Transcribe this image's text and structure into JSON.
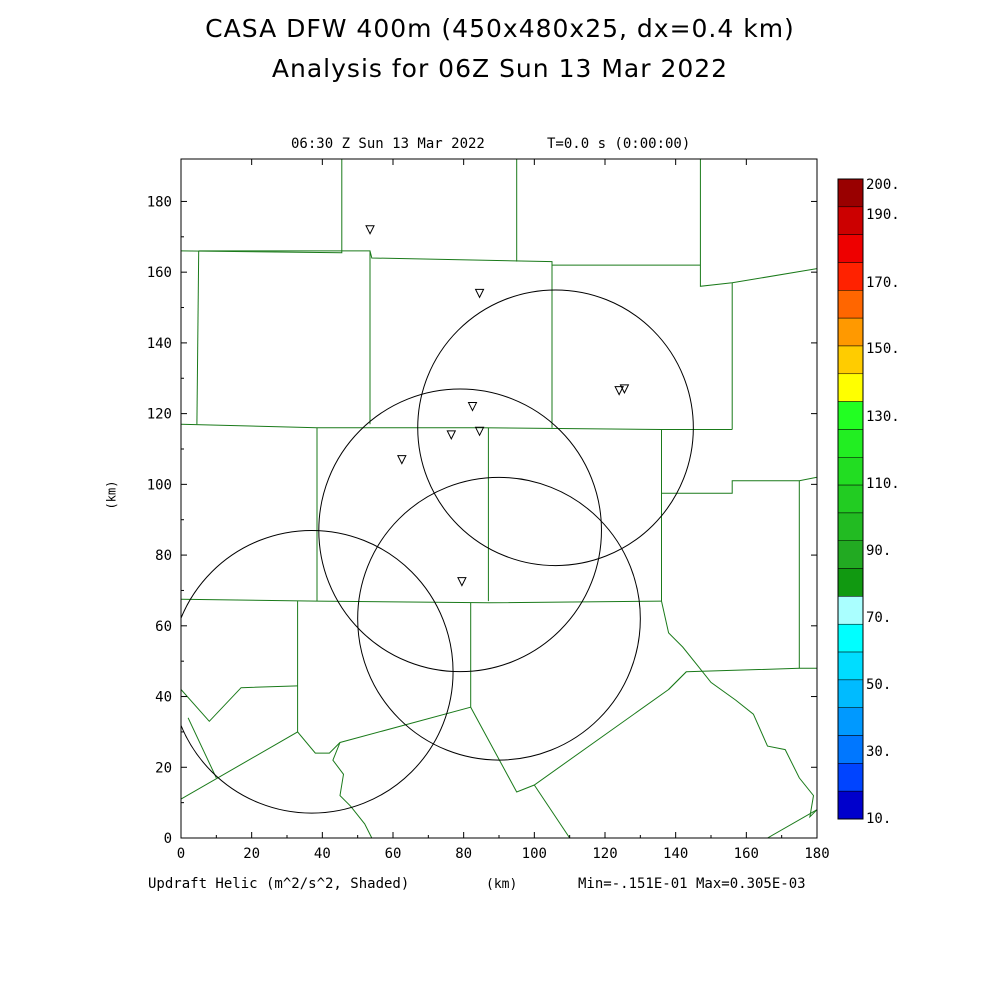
{
  "header": {
    "title_line1": "CASA DFW 400m (450x480x25, dx=0.4 km)",
    "title_line2": "Analysis for 06Z Sun 13 Mar 2022"
  },
  "plot": {
    "time_label": "06:30 Z Sun 13 Mar 2022",
    "t_label": "T=0.0 s (0:00:00)",
    "ylabel": "(km)",
    "xlabel": "(km)",
    "field_label": "Updraft Helic (m^2/s^2, Shaded)",
    "minmax_label": "Min=-.151E-01 Max=0.305E-03"
  },
  "chart_data": {
    "type": "contour-map",
    "xlim": [
      0,
      180
    ],
    "ylim": [
      0,
      192
    ],
    "x_ticks": [
      0,
      20,
      40,
      60,
      80,
      100,
      120,
      140,
      160,
      180
    ],
    "y_ticks": [
      0,
      20,
      40,
      60,
      80,
      100,
      120,
      140,
      160,
      180
    ],
    "x_tick_labels": [
      "0",
      "20",
      "40",
      "60",
      "80",
      "100",
      "120",
      "140",
      "160",
      "180"
    ],
    "y_tick_labels": [
      "0",
      "20",
      "40",
      "60",
      "80",
      "100",
      "120",
      "140",
      "160",
      "180"
    ],
    "radar_range_circles_km": [
      {
        "cx": 37,
        "cy": 47,
        "r": 40
      },
      {
        "cx": 79,
        "cy": 87,
        "r": 40
      },
      {
        "cx": 90,
        "cy": 62,
        "r": 40
      },
      {
        "cx": 106,
        "cy": 116,
        "r": 39
      }
    ],
    "station_markers_km": [
      {
        "x": 53.5,
        "y": 172
      },
      {
        "x": 84.5,
        "y": 154
      },
      {
        "x": 82.5,
        "y": 122
      },
      {
        "x": 76.5,
        "y": 114
      },
      {
        "x": 84.5,
        "y": 115
      },
      {
        "x": 62.5,
        "y": 107
      },
      {
        "x": 124,
        "y": 126.5
      },
      {
        "x": 125.5,
        "y": 127
      },
      {
        "x": 79.5,
        "y": 72.5
      }
    ],
    "county_boundaries_km": [
      [
        [
          0,
          166
        ],
        [
          45.5,
          165.5
        ],
        [
          45.5,
          192
        ]
      ],
      [
        [
          0,
          117
        ],
        [
          38.5,
          116
        ],
        [
          85,
          116
        ],
        [
          136,
          115.5
        ],
        [
          156,
          115.5
        ]
      ],
      [
        [
          5,
          166
        ],
        [
          4.5,
          117
        ]
      ],
      [
        [
          5,
          166
        ],
        [
          53.5,
          166
        ],
        [
          54,
          164
        ],
        [
          105,
          163
        ],
        [
          105,
          162
        ],
        [
          147,
          162
        ]
      ],
      [
        [
          53.5,
          166
        ],
        [
          53.5,
          117
        ]
      ],
      [
        [
          95,
          192
        ],
        [
          95,
          163
        ]
      ],
      [
        [
          105,
          162
        ],
        [
          105,
          116
        ]
      ],
      [
        [
          147,
          192
        ],
        [
          147,
          156
        ],
        [
          156,
          157
        ],
        [
          180,
          161
        ]
      ],
      [
        [
          156,
          157
        ],
        [
          156,
          115.5
        ]
      ],
      [
        [
          38.5,
          116
        ],
        [
          38.5,
          67
        ]
      ],
      [
        [
          87,
          116
        ],
        [
          87,
          67
        ]
      ],
      [
        [
          136,
          115.5
        ],
        [
          136,
          67
        ]
      ],
      [
        [
          136,
          97.5
        ],
        [
          156,
          97.5
        ],
        [
          156,
          101
        ],
        [
          175,
          101
        ],
        [
          180,
          102
        ]
      ],
      [
        [
          175,
          101
        ],
        [
          175,
          48
        ],
        [
          180,
          48
        ]
      ],
      [
        [
          0,
          67.5
        ],
        [
          38.5,
          67
        ],
        [
          87,
          66.5
        ],
        [
          136,
          67
        ]
      ],
      [
        [
          33,
          67
        ],
        [
          33,
          30
        ]
      ],
      [
        [
          82,
          66.5
        ],
        [
          82,
          37
        ]
      ],
      [
        [
          0,
          42
        ],
        [
          8,
          33
        ],
        [
          17,
          42.5
        ],
        [
          33,
          43
        ]
      ],
      [
        [
          2,
          34
        ],
        [
          10,
          17
        ]
      ],
      [
        [
          0,
          11
        ],
        [
          33,
          30
        ],
        [
          38,
          24
        ],
        [
          42,
          24
        ],
        [
          45,
          27
        ],
        [
          82,
          37
        ],
        [
          95,
          13
        ],
        [
          100,
          15
        ],
        [
          138,
          42
        ],
        [
          143,
          47
        ],
        [
          175,
          48
        ]
      ],
      [
        [
          138,
          42
        ],
        [
          143,
          47
        ]
      ],
      [
        [
          45,
          27
        ],
        [
          43,
          22
        ],
        [
          46,
          18
        ],
        [
          45,
          12
        ],
        [
          48,
          9
        ],
        [
          52,
          4
        ],
        [
          54,
          0
        ]
      ],
      [
        [
          100,
          15
        ],
        [
          110,
          0
        ]
      ],
      [
        [
          136,
          67
        ],
        [
          138,
          58
        ],
        [
          142,
          54
        ],
        [
          146,
          49
        ],
        [
          150,
          44
        ],
        [
          157,
          39
        ],
        [
          162,
          35
        ],
        [
          166,
          26
        ],
        [
          171,
          25
        ],
        [
          175,
          17
        ],
        [
          179,
          12
        ],
        [
          178,
          6
        ],
        [
          180,
          8
        ]
      ],
      [
        [
          166,
          0
        ],
        [
          180,
          8
        ]
      ]
    ],
    "colorbar": {
      "labels": [
        "200.",
        "190.",
        "170.",
        "150.",
        "130.",
        "110.",
        "90.",
        "70.",
        "50.",
        "30.",
        "10."
      ],
      "colors_top_to_bottom": [
        "#990000",
        "#cc0000",
        "#ee0000",
        "#ff2200",
        "#ff6600",
        "#ff9900",
        "#ffcc00",
        "#ffff00",
        "#22ff22",
        "#22ee22",
        "#22dd22",
        "#22cc22",
        "#22bb22",
        "#22aa22",
        "#119911",
        "#aaffff",
        "#00ffff",
        "#00ddff",
        "#00bbff",
        "#0099ff",
        "#0077ff",
        "#0044ff",
        "#0000cc"
      ]
    }
  }
}
